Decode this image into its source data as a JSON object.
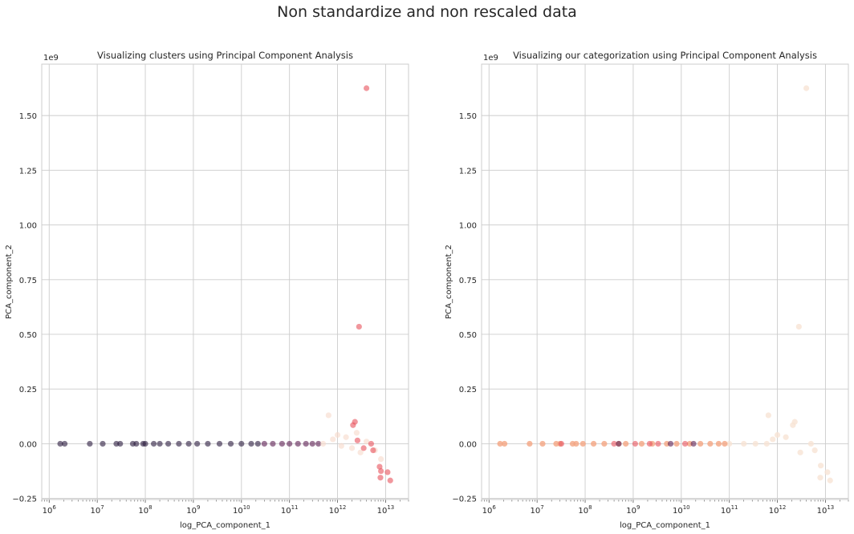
{
  "figure": {
    "suptitle": "Non standardize and non rescaled data"
  },
  "chart_data": [
    {
      "type": "scatter",
      "title": "Visualizing clusters using Principal Component Analysis",
      "xlabel": "log_PCA_component_1",
      "ylabel": "PCA_component_2",
      "y_offset_label": "1e9",
      "xscale": "log",
      "xlim": [
        700000.0,
        30000000000000.0
      ],
      "ylim": [
        -0.255,
        1.735
      ],
      "x_ticks": [
        1000000.0,
        10000000.0,
        100000000.0,
        1000000000.0,
        10000000000.0,
        100000000000.0,
        1000000000000.0,
        10000000000000.0
      ],
      "x_tick_labels": [
        {
          "base": "10",
          "exp": "6"
        },
        {
          "base": "10",
          "exp": "7"
        },
        {
          "base": "10",
          "exp": "8"
        },
        {
          "base": "10",
          "exp": "9"
        },
        {
          "base": "10",
          "exp": "10"
        },
        {
          "base": "10",
          "exp": "11"
        },
        {
          "base": "10",
          "exp": "12"
        },
        {
          "base": "10",
          "exp": "13"
        }
      ],
      "y_ticks": [
        -0.25,
        0.0,
        0.25,
        0.5,
        0.75,
        1.0,
        1.25,
        1.5
      ],
      "y_tick_labels": [
        "−0.25",
        "0.00",
        "0.25",
        "0.50",
        "0.75",
        "1.00",
        "1.25",
        "1.50"
      ],
      "grid": true,
      "series": [
        {
          "color": "#2a1b3d",
          "alpha": 0.6,
          "points": [
            [
              1700000.0,
              0
            ],
            [
              2100000.0,
              0
            ],
            [
              7000000.0,
              0
            ],
            [
              13000000.0,
              0
            ],
            [
              25000000.0,
              0
            ],
            [
              30000000.0,
              0
            ],
            [
              55000000.0,
              0
            ],
            [
              65000000.0,
              0
            ],
            [
              90000000.0,
              0
            ],
            [
              100000000.0,
              0
            ],
            [
              150000000.0,
              0
            ],
            [
              200000000.0,
              0
            ],
            [
              300000000.0,
              0
            ],
            [
              500000000.0,
              0
            ],
            [
              800000000.0,
              0
            ],
            [
              1200000000.0,
              0
            ],
            [
              2000000000.0,
              0
            ],
            [
              3500000000.0,
              0
            ],
            [
              6000000000.0,
              0
            ],
            [
              10000000000.0,
              0
            ],
            [
              16000000000.0,
              0
            ],
            [
              22000000000.0,
              0
            ]
          ]
        },
        {
          "color": "#5b1e51",
          "alpha": 0.6,
          "points": [
            [
              30000000000.0,
              0
            ],
            [
              45000000000.0,
              0
            ],
            [
              70000000000.0,
              0
            ],
            [
              100000000000.0,
              0
            ],
            [
              150000000000.0,
              0
            ],
            [
              220000000000.0,
              0
            ],
            [
              300000000000.0,
              0
            ],
            [
              400000000000.0,
              0
            ]
          ]
        },
        {
          "color": "#f6d9c9",
          "alpha": 0.6,
          "points": [
            [
              500000000000.0,
              0
            ],
            [
              650000000000.0,
              0.13
            ],
            [
              800000000000.0,
              0.02
            ],
            [
              1000000000000.0,
              0.04
            ],
            [
              1200000000000.0,
              -0.01
            ],
            [
              1500000000000.0,
              0.03
            ],
            [
              2000000000000.0,
              -0.02
            ],
            [
              2500000000000.0,
              0.05
            ],
            [
              3000000000000.0,
              -0.04
            ],
            [
              4000000000000.0,
              0.01
            ],
            [
              6000000000000.0,
              -0.03
            ],
            [
              8000000000000.0,
              -0.07
            ]
          ]
        },
        {
          "color": "#e8525b",
          "alpha": 0.6,
          "points": [
            [
              4000000000000.0,
              1.625
            ],
            [
              2800000000000.0,
              0.535
            ],
            [
              2100000000000.0,
              0.085
            ],
            [
              2300000000000.0,
              0.1
            ],
            [
              2600000000000.0,
              0.015
            ],
            [
              3500000000000.0,
              -0.02
            ],
            [
              5000000000000.0,
              0.0
            ],
            [
              5500000000000.0,
              -0.03
            ],
            [
              7500000000000.0,
              -0.105
            ],
            [
              8000000000000.0,
              -0.125
            ],
            [
              7800000000000.0,
              -0.155
            ],
            [
              11000000000000.0,
              -0.13
            ],
            [
              12500000000000.0,
              -0.168
            ]
          ]
        }
      ]
    },
    {
      "type": "scatter",
      "title": "Visualizing our categorization using Principal Component Analysis",
      "xlabel": "log_PCA_component_1",
      "ylabel": "PCA_component_2",
      "y_offset_label": "1e9",
      "xscale": "log",
      "xlim": [
        700000.0,
        30000000000000.0
      ],
      "ylim": [
        -0.255,
        1.735
      ],
      "x_ticks": [
        1000000.0,
        10000000.0,
        100000000.0,
        1000000000.0,
        10000000000.0,
        100000000000.0,
        1000000000000.0,
        10000000000000.0
      ],
      "x_tick_labels": [
        {
          "base": "10",
          "exp": "6"
        },
        {
          "base": "10",
          "exp": "7"
        },
        {
          "base": "10",
          "exp": "8"
        },
        {
          "base": "10",
          "exp": "9"
        },
        {
          "base": "10",
          "exp": "10"
        },
        {
          "base": "10",
          "exp": "11"
        },
        {
          "base": "10",
          "exp": "12"
        },
        {
          "base": "10",
          "exp": "13"
        }
      ],
      "y_ticks": [
        -0.25,
        0.0,
        0.25,
        0.5,
        0.75,
        1.0,
        1.25,
        1.5
      ],
      "y_tick_labels": [
        "−0.25",
        "0.00",
        "0.25",
        "0.50",
        "0.75",
        "1.00",
        "1.25",
        "1.50"
      ],
      "grid": true,
      "series": [
        {
          "color": "#f7e3d5",
          "alpha": 0.8,
          "points": [
            [
              4000000000000.0,
              1.625
            ],
            [
              2800000000000.0,
              0.535
            ],
            [
              650000000000.0,
              0.13
            ],
            [
              1000000000000.0,
              0.04
            ],
            [
              1500000000000.0,
              0.03
            ],
            [
              2100000000000.0,
              0.085
            ],
            [
              2300000000000.0,
              0.1
            ],
            [
              3000000000000.0,
              -0.04
            ],
            [
              5000000000000.0,
              0.0
            ],
            [
              6000000000000.0,
              -0.03
            ],
            [
              8000000000000.0,
              -0.1
            ],
            [
              11000000000000.0,
              -0.13
            ],
            [
              12500000000000.0,
              -0.168
            ],
            [
              7800000000000.0,
              -0.155
            ],
            [
              100000000000.0,
              0
            ],
            [
              200000000000.0,
              0
            ],
            [
              350000000000.0,
              0
            ],
            [
              600000000000.0,
              0
            ],
            [
              800000000000.0,
              0.02
            ]
          ]
        },
        {
          "color": "#f4a582",
          "alpha": 0.8,
          "points": [
            [
              1700000.0,
              0
            ],
            [
              2100000.0,
              0
            ],
            [
              7000000.0,
              0
            ],
            [
              13000000.0,
              0
            ],
            [
              25000000.0,
              0
            ],
            [
              30000000.0,
              0
            ],
            [
              55000000.0,
              0
            ],
            [
              65000000.0,
              0
            ],
            [
              90000000.0,
              0
            ],
            [
              150000000.0,
              0
            ],
            [
              250000000.0,
              0
            ],
            [
              500000000.0,
              0
            ],
            [
              700000000.0,
              0
            ],
            [
              1500000000.0,
              0
            ],
            [
              2500000000.0,
              0
            ],
            [
              5000000000.0,
              0
            ],
            [
              8000000000.0,
              0
            ],
            [
              15000000000.0,
              0
            ],
            [
              25000000000.0,
              0
            ],
            [
              40000000000.0,
              0
            ],
            [
              60000000000.0,
              0
            ],
            [
              80000000000.0,
              0
            ]
          ]
        },
        {
          "color": "#e8525b",
          "alpha": 0.6,
          "points": [
            [
              32000000.0,
              0
            ],
            [
              400000000.0,
              0
            ],
            [
              1100000000.0,
              0
            ],
            [
              2200000000.0,
              0
            ],
            [
              3300000000.0,
              0
            ],
            [
              12000000000.0,
              0
            ]
          ]
        },
        {
          "color": "#5b1e51",
          "alpha": 0.6,
          "points": [
            [
              500000000.0,
              0
            ],
            [
              6000000000.0,
              0
            ],
            [
              18000000000.0,
              0
            ]
          ]
        }
      ]
    }
  ]
}
